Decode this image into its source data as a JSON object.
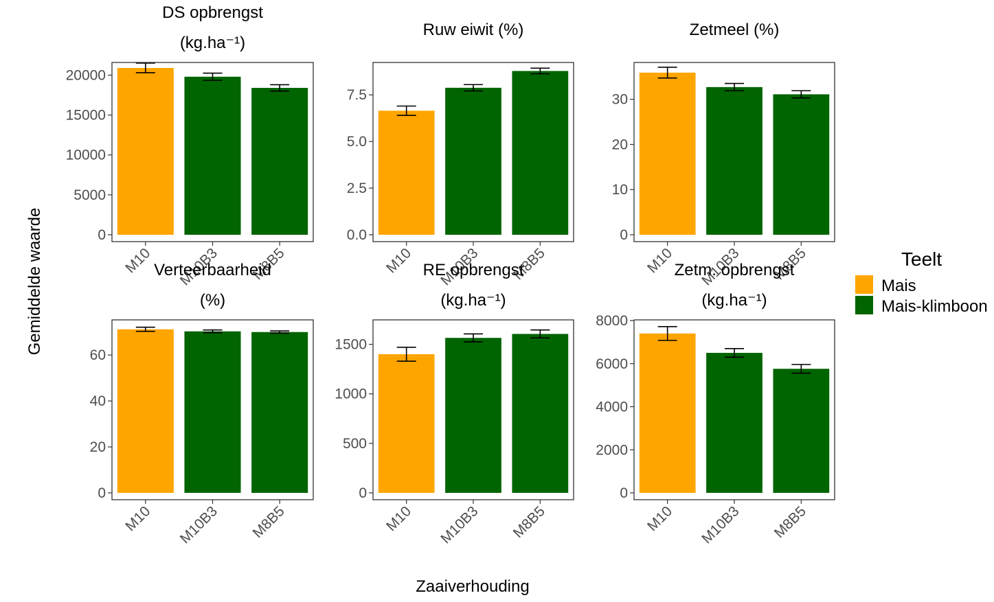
{
  "figure": {
    "ylabel": "Gemiddelde waarde",
    "xlabel": "Zaaiverhouding"
  },
  "legend": {
    "title": "Teelt",
    "placement": "right",
    "items": [
      {
        "label": "Mais",
        "color": "#FFA500"
      },
      {
        "label": "Mais-klimboon",
        "color": "#006400"
      }
    ]
  },
  "chart_data": [
    {
      "type": "bar",
      "title": [
        "DS opbrengst",
        "(kg.ha⁻¹)"
      ],
      "categories": [
        "M10",
        "M10B3",
        "M8B5"
      ],
      "teelt": [
        "Mais",
        "Mais-klimboon",
        "Mais-klimboon"
      ],
      "values": [
        20900,
        19800,
        18400
      ],
      "error": [
        600,
        450,
        400
      ],
      "ylim": [
        0,
        21500
      ],
      "yticks": [
        0,
        5000,
        10000,
        15000,
        20000
      ],
      "yticklabels": [
        "0",
        "5000",
        "10000",
        "15000",
        "20000"
      ]
    },
    {
      "type": "bar",
      "title": [
        "Ruw eiwit (%)"
      ],
      "categories": [
        "M10",
        "M10B3",
        "M8B5"
      ],
      "teelt": [
        "Mais",
        "Mais-klimboon",
        "Mais-klimboon"
      ],
      "values": [
        6.65,
        7.88,
        8.78
      ],
      "error": [
        0.25,
        0.17,
        0.15
      ],
      "ylim": [
        0,
        9.2
      ],
      "yticks": [
        0,
        2.5,
        5.0,
        7.5
      ],
      "yticklabels": [
        "0.0",
        "2.5",
        "5.0",
        "7.5"
      ]
    },
    {
      "type": "bar",
      "title": [
        "Zetmeel (%)"
      ],
      "categories": [
        "M10",
        "M10B3",
        "M8B5"
      ],
      "teelt": [
        "Mais",
        "Mais-klimboon",
        "Mais-klimboon"
      ],
      "values": [
        35.9,
        32.7,
        31.1
      ],
      "error": [
        1.2,
        0.8,
        0.8
      ],
      "ylim": [
        0,
        38
      ],
      "yticks": [
        0,
        10,
        20,
        30
      ],
      "yticklabels": [
        "0",
        "10",
        "20",
        "30"
      ]
    },
    {
      "type": "bar",
      "title": [
        "Verteerbaarheid",
        "(%)"
      ],
      "categories": [
        "M10",
        "M10B3",
        "M8B5"
      ],
      "teelt": [
        "Mais",
        "Mais-klimboon",
        "Mais-klimboon"
      ],
      "values": [
        71.2,
        70.3,
        70.0
      ],
      "error": [
        0.9,
        0.6,
        0.5
      ],
      "ylim": [
        0,
        75
      ],
      "yticks": [
        0,
        20,
        40,
        60
      ],
      "yticklabels": [
        "0",
        "20",
        "40",
        "60"
      ]
    },
    {
      "type": "bar",
      "title": [
        "RE opbrengst",
        "(kg.ha⁻¹)"
      ],
      "categories": [
        "M10",
        "M10B3",
        "M8B5"
      ],
      "teelt": [
        "Mais",
        "Mais-klimboon",
        "Mais-klimboon"
      ],
      "values": [
        1400,
        1565,
        1605
      ],
      "error": [
        70,
        40,
        40
      ],
      "ylim": [
        0,
        1740
      ],
      "yticks": [
        0,
        500,
        1000,
        1500
      ],
      "yticklabels": [
        "0",
        "500",
        "1000",
        "1500"
      ]
    },
    {
      "type": "bar",
      "title": [
        "Zetm. opbrengst",
        "(kg.ha⁻¹)"
      ],
      "categories": [
        "M10",
        "M10B3",
        "M8B5"
      ],
      "teelt": [
        "Mais",
        "Mais-klimboon",
        "Mais-klimboon"
      ],
      "values": [
        7400,
        6500,
        5760
      ],
      "error": [
        320,
        200,
        200
      ],
      "ylim": [
        0,
        8000
      ],
      "yticks": [
        0,
        2000,
        4000,
        6000,
        8000
      ],
      "yticklabels": [
        "0",
        "2000",
        "4000",
        "6000",
        "8000"
      ]
    }
  ]
}
